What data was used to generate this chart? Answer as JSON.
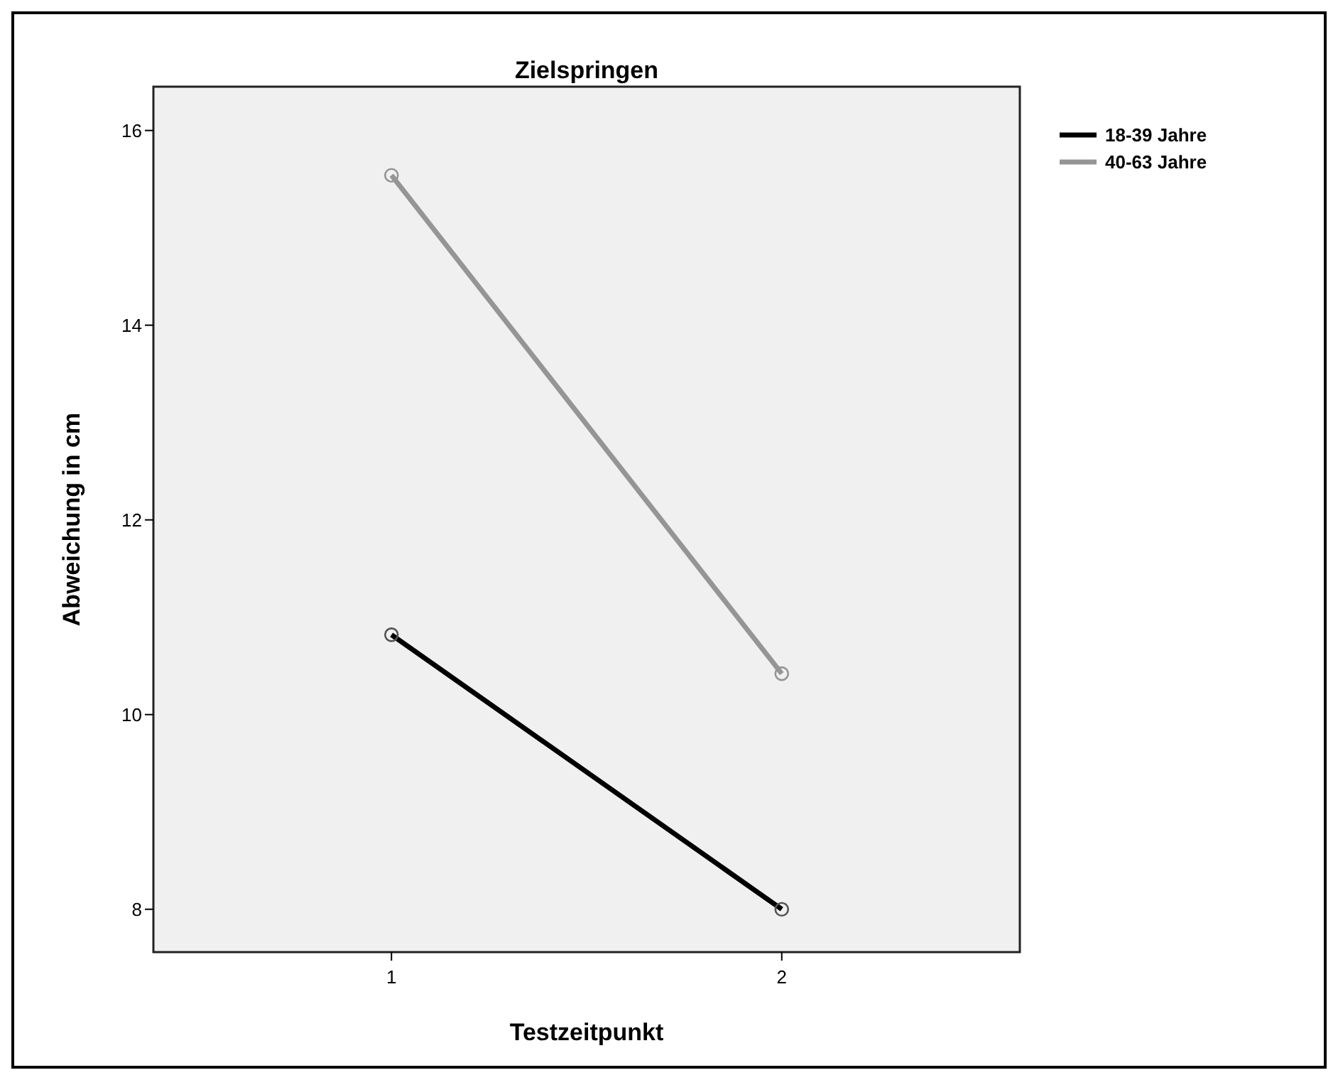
{
  "chart_data": {
    "type": "line",
    "title": "Zielspringen",
    "xlabel": "Testzeitpunkt",
    "ylabel": "Abweichung in cm",
    "x": [
      1,
      2
    ],
    "xlim": [
      0.39,
      2.61
    ],
    "xticks": [
      1,
      2
    ],
    "ylim": [
      7.56,
      16.45
    ],
    "yticks": [
      8,
      10,
      12,
      14,
      16
    ],
    "series": [
      {
        "name": "18-39 Jahre",
        "color": "#000000",
        "values": [
          10.82,
          8.0
        ]
      },
      {
        "name": "40-63 Jahre",
        "color": "#959595",
        "values": [
          15.54,
          10.42
        ]
      }
    ],
    "marker": "circle",
    "line_style": "solid",
    "grid": false,
    "legend": "top right"
  }
}
